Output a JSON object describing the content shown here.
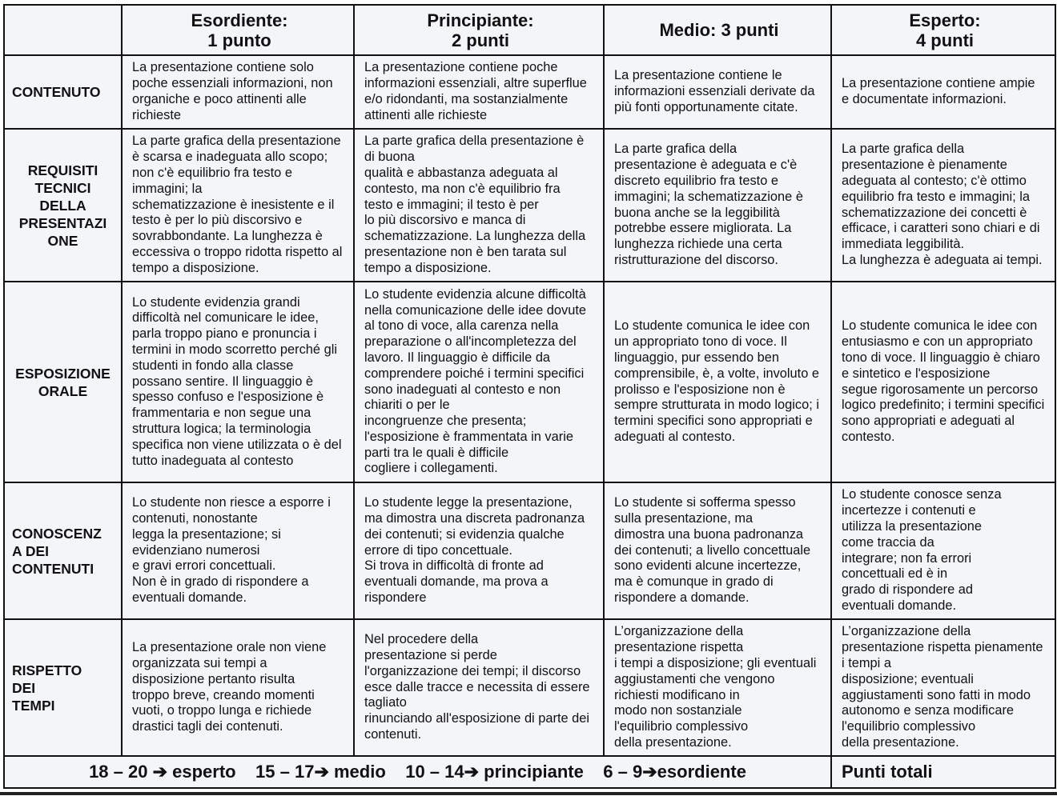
{
  "headers": [
    "",
    "Esordiente:\n1 punto",
    "Principiante:\n2 punti",
    "Medio: 3 punti",
    "Esperto:\n4 punti"
  ],
  "rows": [
    {
      "label": "CONTENUTO",
      "cells": [
        "La presentazione contiene solo\npoche essenziali informazioni, non\norganiche e poco attinenti alle\nrichieste",
        "La presentazione contiene poche\ninformazioni essenziali, altre superflue\ne/o ridondanti, ma sostanzialmente\nattinenti alle richieste",
        "La presentazione contiene le\ninformazioni essenziali derivate da\npiù fonti opportunamente citate.",
        "La presentazione contiene ampie\ne documentate informazioni."
      ]
    },
    {
      "label": "REQUISITI\nTECNICI\nDELLA\nPRESENTAZI\nONE",
      "cells": [
        "La parte grafica della presentazione\nè scarsa e inadeguata allo scopo;\nnon c'è equilibrio fra testo e\nimmagini; la\nschematizzazione è inesistente e il\ntesto è per lo più discorsivo e\nsovrabbondante. La lunghezza è\neccessiva o troppo ridotta rispetto al\ntempo a disposizione.",
        "La parte grafica della presentazione è\ndi buona\nqualità e abbastanza adeguata al\ncontesto, ma non c'è equilibrio fra\ntesto e immagini; il testo è per\nlo più discorsivo e manca di\nschematizzazione. La lunghezza della\npresentazione non è ben tarata sul\ntempo a disposizione.",
        "La parte grafica della\npresentazione è adeguata e c'è\ndiscreto equilibrio fra testo e\nimmagini; la schematizzazione è\nbuona anche se la leggibilità\npotrebbe essere migliorata. La\nlunghezza richiede una certa\nristrutturazione del discorso.",
        "La parte grafica della\npresentazione è pienamente\nadeguata al contesto; c'è ottimo\nequilibrio fra testo e immagini; la\nschematizzazione dei concetti è\nefficace, i caratteri sono chiari e di\nimmediata leggibilità.\nLa lunghezza è adeguata ai tempi."
      ]
    },
    {
      "label": "ESPOSIZIONE\nORALE",
      "cells": [
        "Lo studente evidenzia grandi\ndifficoltà nel comunicare le idee,\nparla troppo piano e pronuncia i\ntermini in modo scorretto perché gli\nstudenti in fondo alla classe\npossano sentire. Il linguaggio è\nspesso confuso e l'esposizione è\nframmentaria e non segue una\nstruttura logica; la terminologia\nspecifica non viene utilizzata o è del\ntutto inadeguata al contesto",
        "Lo studente evidenzia alcune difficoltà\nnella comunicazione delle idee dovute\nal tono di voce, alla carenza nella\npreparazione o all'incompletezza del\nlavoro. Il linguaggio è difficile da\ncomprendere poiché i termini specifici\nsono inadeguati al contesto e non\nchiariti o per le\nincongruenze che presenta;\nl'esposizione è frammentata in varie\nparti tra le quali è difficile\ncogliere i collegamenti.",
        "Lo studente comunica le idee con\nun appropriato tono di voce. Il\nlinguaggio, pur essendo ben\ncomprensibile, è, a volte, involuto e\nprolisso e l'esposizione non è\nsempre strutturata in modo logico; i\ntermini specifici sono appropriati e\nadeguati al contesto.",
        "Lo studente comunica le idee con\nentusiasmo e con un appropriato\ntono di voce. Il linguaggio è chiaro\ne sintetico e l'esposizione\nsegue rigorosamente un percorso\nlogico predefinito; i termini specifici\nsono appropriati e adeguati al\ncontesto."
      ]
    },
    {
      "label": "CONOSCENZ\nA DEI\nCONTENUTI",
      "cells": [
        "Lo studente non riesce a esporre i\ncontenuti, nonostante\nlegga la presentazione; si\nevidenziano numerosi\ne gravi errori concettuali.\nNon è in grado di rispondere a\neventuali domande.",
        "Lo studente legge la presentazione,\nma dimostra una discreta padronanza\ndei contenuti; si evidenzia qualche\nerrore di tipo concettuale.\nSi trova in difficoltà di fronte ad\neventuali domande, ma prova a\nrispondere",
        "Lo studente si sofferma spesso\nsulla presentazione, ma\ndimostra una buona padronanza\ndei contenuti; a livello concettuale\nsono evidenti alcune incertezze,\nma è comunque in grado di\nrispondere a domande.",
        "Lo studente conosce senza\nincertezze i contenuti e\nutilizza la presentazione\ncome traccia da\nintegrare; non fa errori\nconcettuali ed è in\ngrado di rispondere ad\neventuali domande."
      ]
    },
    {
      "label": "RISPETTO\nDEI\nTEMPI",
      "cells": [
        "La presentazione orale non viene\norganizzata sui tempi a\ndisposizione pertanto risulta\ntroppo breve, creando momenti\nvuoti, o troppo lunga e richiede\ndrastici tagli dei contenuti.",
        "Nel procedere della\npresentazione si perde\nl'organizzazione dei tempi; il discorso\nesce dalle tracce e necessita di essere\ntagliato\nrinunciando all'esposizione di parte dei\ncontenuti.",
        "L’organizzazione della\npresentazione rispetta\ni tempi a disposizione; gli eventuali\naggiustamenti che vengono\nrichiesti  modificano in\nmodo non sostanziale\nl'equilibrio complessivo\ndella presentazione.",
        "L’organizzazione della\npresentazione rispetta pienamente\ni tempi a\ndisposizione; eventuali\naggiustamenti sono fatti in modo\nautonomo e senza modificare\nl'equilibrio complessivo\ndella presentazione."
      ]
    }
  ],
  "footer": {
    "scale": "18 – 20 ➔ esperto    15 – 17➔ medio    10 – 14➔ principiante    6 – 9➔esordiente",
    "total_label": "Punti totali"
  }
}
